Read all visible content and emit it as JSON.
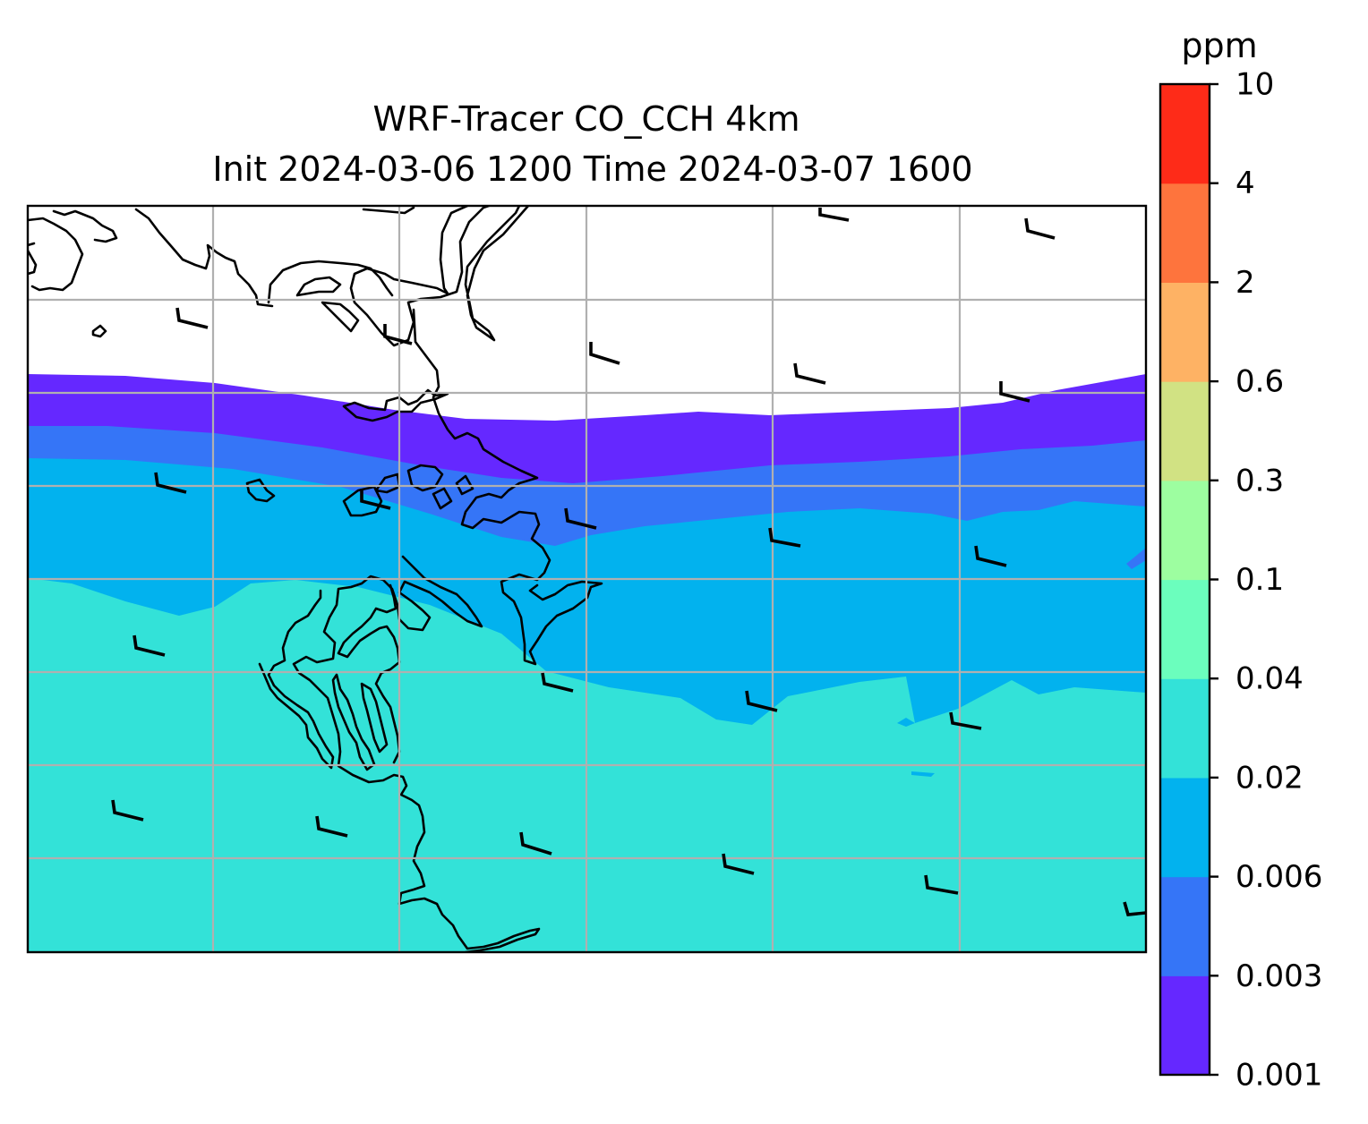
{
  "chart_data": {
    "type": "map-contour",
    "title": "WRF-Tracer CO_CCH 4km",
    "subtitle": "Init 2024-03-06 1200 Time 2024-03-07 1600",
    "colorbar": {
      "units": "ppm",
      "levels": [
        "0.001",
        "0.003",
        "0.006",
        "0.02",
        "0.04",
        "0.1",
        "0.3",
        "0.6",
        "2",
        "4",
        "10"
      ],
      "colors": [
        "#6528ff",
        "#3575f7",
        "#02b2ee",
        "#33e2d8",
        "#6bfebd",
        "#9dfea0",
        "#d1e283",
        "#feb264",
        "#fe743d",
        "#fe2b18"
      ]
    },
    "fill_bands": [
      {
        "level_range": [
          "0.001",
          "0.003"
        ],
        "color": "#6528ff"
      },
      {
        "level_range": [
          "0.003",
          "0.006"
        ],
        "color": "#3575f7"
      },
      {
        "level_range": [
          "0.006",
          "0.02"
        ],
        "color": "#02b2ee"
      },
      {
        "level_range": [
          "0.02",
          "0.04"
        ],
        "color": "#33e2d8"
      }
    ],
    "grid": true,
    "wind_barbs": true
  }
}
